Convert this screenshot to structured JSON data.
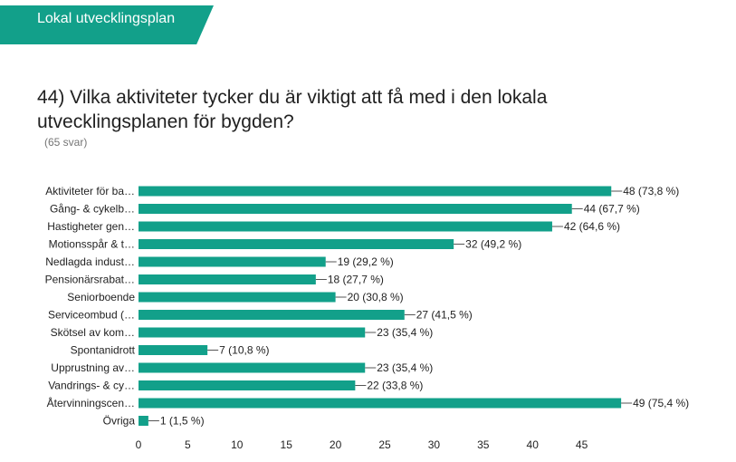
{
  "header": {
    "banner_label": "Lokal utvecklingsplan"
  },
  "question": {
    "title": "44) Vilka aktiviteter tycker du är viktigt att få med i den lokala utvecklingsplanen för bygden?",
    "response_count": "(65 svar)"
  },
  "colors": {
    "accent": "#12a08a",
    "bar": "#12a08a"
  },
  "chart_data": {
    "type": "bar",
    "orientation": "horizontal",
    "categories": [
      "Aktiviteter för ba…",
      "Gång- & cykelb…",
      "Hastigheter gen…",
      "Motionsspår & t…",
      "Nedlagda indust…",
      "Pensionärsrabat…",
      "Seniorboende",
      "Serviceombud (…",
      "Skötsel av kom…",
      "Spontanidrott",
      "Upprustning av…",
      "Vandrings- & cy…",
      "Återvinningscen…",
      "Övriga"
    ],
    "values": [
      48,
      44,
      42,
      32,
      19,
      18,
      20,
      27,
      23,
      7,
      23,
      22,
      49,
      1
    ],
    "data_labels": [
      "48 (73,8 %)",
      "44 (67,7 %)",
      "42 (64,6 %)",
      "32 (49,2 %)",
      "19 (29,2 %)",
      "18 (27,7 %)",
      "20 (30,8 %)",
      "27 (41,5 %)",
      "23 (35,4 %)",
      "7 (10,8 %)",
      "23 (35,4 %)",
      "22 (33,8 %)",
      "49 (75,4 %)",
      "1 (1,5 %)"
    ],
    "xticks": [
      "0",
      "5",
      "10",
      "15",
      "20",
      "25",
      "30",
      "35",
      "40",
      "45"
    ],
    "xlim": [
      0,
      50
    ],
    "grid": false,
    "legend": "none"
  }
}
